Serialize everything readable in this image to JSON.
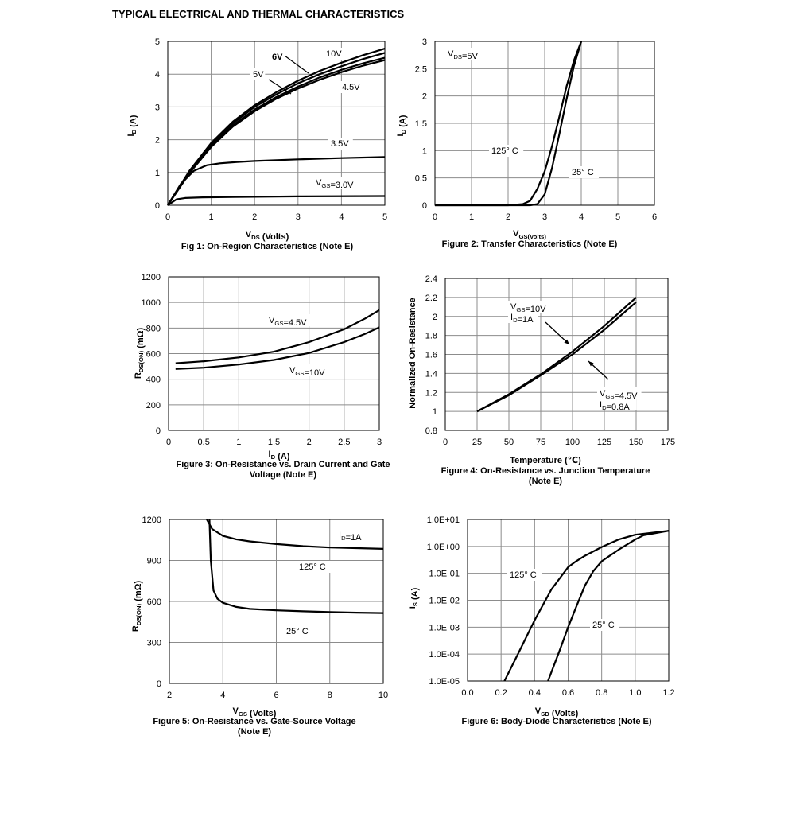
{
  "page_title": "TYPICAL ELECTRICAL AND THERMAL CHARACTERISTICS",
  "chart_data": [
    {
      "type": "line",
      "caption": "Fig 1: On-Region Characteristics (Note E)",
      "xlabel": "V_DS (Volts)",
      "ylabel": "I_D (A)",
      "xlim": [
        0,
        5
      ],
      "ylim": [
        0,
        5
      ],
      "xticks": [
        0,
        1,
        2,
        3,
        4,
        5
      ],
      "yticks": [
        0,
        1,
        2,
        3,
        4,
        5
      ],
      "xtick_labels": [
        "0",
        "1",
        "2",
        "3",
        "4",
        "5"
      ],
      "ytick_labels": [
        "0",
        "1",
        "2",
        "3",
        "4",
        "5"
      ],
      "grid": true,
      "series": [
        {
          "name": "10V",
          "x": [
            0,
            0.5,
            1,
            1.5,
            2,
            2.5,
            3,
            3.5,
            4,
            4.5,
            5
          ],
          "y": [
            0,
            1.05,
            1.9,
            2.55,
            3.05,
            3.45,
            3.8,
            4.1,
            4.35,
            4.58,
            4.78
          ]
        },
        {
          "name": "6V",
          "x": [
            0,
            0.5,
            1,
            1.5,
            2,
            2.5,
            3,
            3.5,
            4,
            4.5,
            5
          ],
          "y": [
            0,
            1.03,
            1.87,
            2.5,
            3.0,
            3.38,
            3.72,
            4.0,
            4.24,
            4.46,
            4.65
          ]
        },
        {
          "name": "5V",
          "x": [
            0,
            0.5,
            1,
            1.5,
            2,
            2.5,
            3,
            3.5,
            4,
            4.5,
            5
          ],
          "y": [
            0,
            1.0,
            1.82,
            2.44,
            2.92,
            3.3,
            3.62,
            3.9,
            4.13,
            4.33,
            4.5
          ]
        },
        {
          "name": "4.5V",
          "x": [
            0,
            0.5,
            1,
            1.5,
            2,
            2.5,
            3,
            3.5,
            4,
            4.5,
            5
          ],
          "y": [
            0,
            0.98,
            1.78,
            2.4,
            2.87,
            3.25,
            3.56,
            3.83,
            4.06,
            4.26,
            4.43
          ]
        },
        {
          "name": "3.5V",
          "x": [
            0,
            0.3,
            0.6,
            0.9,
            1.2,
            1.6,
            2,
            3,
            4,
            5
          ],
          "y": [
            0,
            0.65,
            1.05,
            1.22,
            1.28,
            1.32,
            1.35,
            1.4,
            1.44,
            1.47
          ]
        },
        {
          "name": "V_GS=3.0V",
          "x": [
            0,
            0.2,
            0.4,
            0.8,
            1.5,
            3,
            5
          ],
          "y": [
            0,
            0.18,
            0.22,
            0.24,
            0.25,
            0.27,
            0.28
          ]
        }
      ],
      "annotations": [
        "6V",
        "10V",
        "5V",
        "4.5V",
        "3.5V",
        "V_GS=3.0V"
      ]
    },
    {
      "type": "line",
      "caption": "Figure 2: Transfer Characteristics (Note E)",
      "xlabel": "V_GS(Volts)",
      "ylabel": "I_D (A)",
      "xlim": [
        0,
        6
      ],
      "ylim": [
        0,
        3
      ],
      "xticks": [
        0,
        1,
        2,
        3,
        4,
        5,
        6
      ],
      "yticks": [
        0,
        0.5,
        1,
        1.5,
        2,
        2.5,
        3
      ],
      "xtick_labels": [
        "0",
        "1",
        "2",
        "3",
        "4",
        "5",
        "6"
      ],
      "ytick_labels": [
        "0",
        "0.5",
        "1",
        "1.5",
        "2",
        "2.5",
        "3"
      ],
      "grid": true,
      "series": [
        {
          "name": "125° C",
          "x": [
            0,
            2.0,
            2.4,
            2.6,
            2.8,
            3.0,
            3.2,
            3.4,
            3.6,
            3.8,
            4.0
          ],
          "y": [
            0,
            0.0,
            0.02,
            0.08,
            0.3,
            0.62,
            1.08,
            1.62,
            2.18,
            2.65,
            3.0
          ]
        },
        {
          "name": "25° C",
          "x": [
            0,
            2.0,
            2.6,
            2.8,
            3.0,
            3.2,
            3.4,
            3.6,
            3.8,
            4.0
          ],
          "y": [
            0,
            0.0,
            0.0,
            0.02,
            0.2,
            0.68,
            1.3,
            1.95,
            2.55,
            3.0
          ]
        }
      ],
      "annotations": [
        "V_DS=5V",
        "125° C",
        "25° C"
      ]
    },
    {
      "type": "line",
      "caption": "Figure 3: On-Resistance vs. Drain Current and Gate Voltage (Note E)",
      "xlabel": "I_D (A)",
      "ylabel": "R_DS(ON) (mΩ)",
      "xlim": [
        0,
        3
      ],
      "ylim": [
        0,
        1200
      ],
      "xticks": [
        0,
        0.5,
        1,
        1.5,
        2,
        2.5,
        3
      ],
      "yticks": [
        0,
        200,
        400,
        600,
        800,
        1000,
        1200
      ],
      "xtick_labels": [
        "0",
        "0.5",
        "1",
        "1.5",
        "2",
        "2.5",
        "3"
      ],
      "ytick_labels": [
        "0",
        "200",
        "400",
        "600",
        "800",
        "1000",
        "1200"
      ],
      "grid": true,
      "series": [
        {
          "name": "V_GS=4.5V",
          "x": [
            0.1,
            0.5,
            1.0,
            1.5,
            2.0,
            2.5,
            2.8,
            3.0
          ],
          "y": [
            525,
            540,
            570,
            615,
            690,
            790,
            875,
            940
          ]
        },
        {
          "name": "V_GS=10V",
          "x": [
            0.1,
            0.5,
            1.0,
            1.5,
            2.0,
            2.5,
            2.8,
            3.0
          ],
          "y": [
            480,
            490,
            515,
            550,
            605,
            690,
            755,
            805
          ]
        }
      ],
      "annotations": [
        "V_GS=4.5V",
        "V_GS=10V"
      ]
    },
    {
      "type": "line",
      "caption": "Figure 4: On-Resistance vs. Junction Temperature (Note E)",
      "xlabel": "Temperature (℃)",
      "ylabel": "Normalized On-Resistance",
      "xlim": [
        0,
        175
      ],
      "ylim": [
        0.8,
        2.4
      ],
      "xticks": [
        0,
        25,
        50,
        75,
        100,
        125,
        150,
        175
      ],
      "yticks": [
        0.8,
        1,
        1.2,
        1.4,
        1.6,
        1.8,
        2,
        2.2,
        2.4
      ],
      "xtick_labels": [
        "0",
        "25",
        "50",
        "75",
        "100",
        "125",
        "150",
        "175"
      ],
      "ytick_labels": [
        "0.8",
        "1",
        "1.2",
        "1.4",
        "1.6",
        "1.8",
        "2",
        "2.2",
        "2.4"
      ],
      "grid": true,
      "series": [
        {
          "name": "V_GS=10V I_D=1A",
          "x": [
            25,
            50,
            75,
            100,
            125,
            150
          ],
          "y": [
            1.0,
            1.18,
            1.39,
            1.63,
            1.9,
            2.2
          ]
        },
        {
          "name": "V_GS=4.5V I_D=0.8A",
          "x": [
            25,
            50,
            75,
            100,
            125,
            150
          ],
          "y": [
            1.0,
            1.17,
            1.38,
            1.6,
            1.86,
            2.15
          ]
        }
      ],
      "annotations": [
        "V_GS=10V",
        "I_D=1A",
        "V_GS=4.5V",
        "I_D=0.8A"
      ]
    },
    {
      "type": "line",
      "caption": "Figure 5: On-Resistance vs. Gate-Source Voltage (Note E)",
      "xlabel": "V_GS (Volts)",
      "ylabel": "R_DS(ON) (mΩ)",
      "xlim": [
        2,
        10
      ],
      "ylim": [
        0,
        1200
      ],
      "xticks": [
        2,
        4,
        6,
        8,
        10
      ],
      "yticks": [
        0,
        300,
        600,
        900,
        1200
      ],
      "xtick_labels": [
        "2",
        "4",
        "6",
        "8",
        "10"
      ],
      "ytick_labels": [
        "0",
        "300",
        "600",
        "900",
        "1200"
      ],
      "grid": true,
      "series": [
        {
          "name": "125° C",
          "x": [
            3.4,
            3.6,
            4.0,
            4.5,
            5,
            6,
            7,
            8,
            9,
            10
          ],
          "y": [
            1200,
            1130,
            1080,
            1055,
            1040,
            1020,
            1005,
            995,
            990,
            985
          ]
        },
        {
          "name": "25° C",
          "x": [
            3.5,
            3.55,
            3.65,
            3.8,
            4.0,
            4.5,
            5,
            6,
            7,
            8,
            9,
            10
          ],
          "y": [
            1200,
            900,
            680,
            620,
            590,
            560,
            545,
            535,
            528,
            522,
            518,
            515
          ]
        }
      ],
      "annotations": [
        "I_D=1A",
        "125° C",
        "25° C"
      ]
    },
    {
      "type": "line",
      "caption": "Figure 6: Body-Diode Characteristics (Note E)",
      "xlabel": "V_SD (Volts)",
      "ylabel": "I_S (A)",
      "xlim": [
        0,
        1.2
      ],
      "ylim": [
        1e-05,
        10
      ],
      "yscale": "log",
      "xticks": [
        0,
        0.2,
        0.4,
        0.6,
        0.8,
        1.0,
        1.2
      ],
      "yticks": [
        1e-05,
        0.0001,
        0.001,
        0.01,
        0.1,
        1,
        10
      ],
      "xtick_labels": [
        "0.0",
        "0.2",
        "0.4",
        "0.6",
        "0.8",
        "1.0",
        "1.2"
      ],
      "ytick_labels": [
        "1.0E-05",
        "1.0E-04",
        "1.0E-03",
        "1.0E-02",
        "1.0E-01",
        "1.0E+00",
        "1.0E+01"
      ],
      "grid": true,
      "series": [
        {
          "name": "125° C",
          "x": [
            0.22,
            0.3,
            0.4,
            0.5,
            0.6,
            0.64,
            0.7,
            0.8,
            0.9,
            1.0,
            1.2
          ],
          "y": [
            1e-05,
            0.0001,
            0.0018,
            0.025,
            0.17,
            0.26,
            0.45,
            0.95,
            1.8,
            2.7,
            3.8
          ]
        },
        {
          "name": "25° C",
          "x": [
            0.48,
            0.55,
            0.6,
            0.65,
            0.7,
            0.75,
            0.8,
            0.9,
            1.0,
            1.05,
            1.2
          ],
          "y": [
            1e-05,
            0.00014,
            0.001,
            0.006,
            0.035,
            0.12,
            0.28,
            0.75,
            1.8,
            2.6,
            3.8
          ]
        }
      ],
      "annotations": [
        "125° C",
        "25° C"
      ]
    }
  ]
}
